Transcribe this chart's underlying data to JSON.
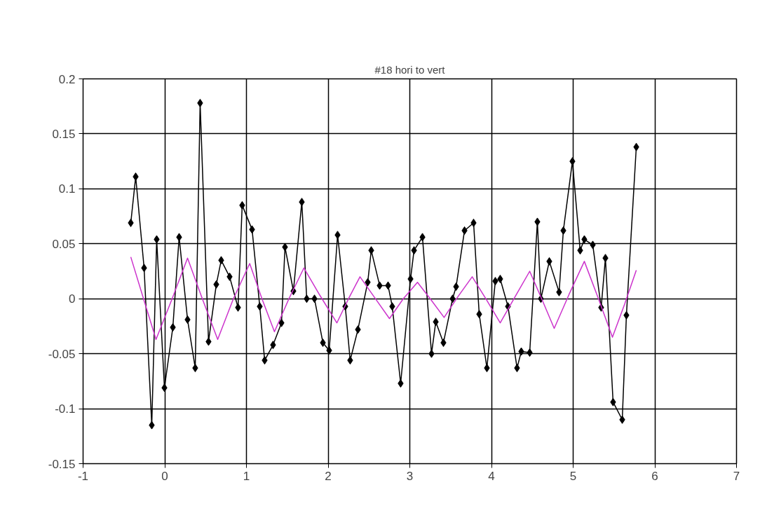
{
  "chart_data": {
    "type": "line",
    "title": "#18 hori to vert",
    "xlim": [
      -1,
      7
    ],
    "xticks": [
      -1,
      0,
      1,
      2,
      3,
      4,
      5,
      6,
      7
    ],
    "ylim": [
      -0.15,
      0.2
    ],
    "yticks": [
      -0.15,
      -0.1,
      -0.05,
      0,
      0.05,
      0.1,
      0.15,
      0.2
    ],
    "grid": true,
    "series": [
      {
        "color": "#000000",
        "marker": "diamond",
        "x": [
          -0.416,
          -0.356,
          -0.253,
          -0.159,
          -0.099,
          -0.004,
          0.099,
          0.176,
          0.279,
          0.373,
          0.433,
          0.536,
          0.631,
          0.691,
          0.794,
          0.897,
          0.948,
          1.069,
          1.163,
          1.223,
          1.326,
          1.429,
          1.472,
          1.575,
          1.678,
          1.738,
          1.833,
          1.936,
          2.013,
          2.116,
          2.21,
          2.27,
          2.365,
          2.485,
          2.528,
          2.631,
          2.734,
          2.785,
          2.888,
          3.009,
          3.052,
          3.155,
          3.266,
          3.318,
          3.412,
          3.524,
          3.567,
          3.67,
          3.781,
          3.85,
          3.944,
          4.047,
          4.107,
          4.202,
          4.313,
          4.365,
          4.468,
          4.562,
          4.605,
          4.708,
          4.828,
          4.88,
          4.991,
          5.086,
          5.137,
          5.24,
          5.343,
          5.395,
          5.489,
          5.601,
          5.652,
          5.773
        ],
        "values": [
          0.069,
          0.111,
          0.028,
          -0.115,
          0.054,
          -0.081,
          -0.026,
          0.056,
          -0.019,
          -0.063,
          0.178,
          -0.039,
          0.013,
          0.035,
          0.02,
          -0.008,
          0.085,
          0.063,
          -0.007,
          -0.056,
          -0.042,
          -0.022,
          0.047,
          0.007,
          0.088,
          0.0,
          0.0,
          -0.04,
          -0.047,
          0.058,
          -0.007,
          -0.056,
          -0.028,
          0.015,
          0.044,
          0.012,
          0.012,
          -0.007,
          -0.077,
          0.018,
          0.044,
          0.056,
          -0.05,
          -0.021,
          -0.04,
          0.0,
          0.011,
          0.062,
          0.069,
          -0.014,
          -0.063,
          0.016,
          0.018,
          -0.007,
          -0.063,
          -0.048,
          -0.049,
          0.07,
          0.0,
          0.034,
          0.006,
          0.062,
          0.125,
          0.044,
          0.054,
          0.049,
          -0.008,
          0.037,
          -0.094,
          -0.11,
          -0.015,
          0.138
        ]
      },
      {
        "color": "#cc33cc",
        "marker": "none",
        "x": [
          -0.416,
          -0.26,
          -0.107,
          0.09,
          0.279,
          0.46,
          0.648,
          0.84,
          1.04,
          1.19,
          1.343,
          1.52,
          1.704,
          1.9,
          2.107,
          2.25,
          2.39,
          2.57,
          2.751,
          2.92,
          3.094,
          3.26,
          3.42,
          3.59,
          3.764,
          3.94,
          4.107,
          4.29,
          4.468,
          4.62,
          4.768,
          4.95,
          5.137,
          5.31,
          5.481,
          5.63,
          5.773
        ],
        "values": [
          0.038,
          0.0,
          -0.037,
          0.0,
          0.037,
          0.0,
          -0.037,
          0.0,
          0.032,
          0.0,
          -0.03,
          0.0,
          0.028,
          0.003,
          -0.022,
          0.0,
          0.02,
          0.001,
          -0.018,
          0.0,
          0.015,
          -0.001,
          -0.017,
          0.002,
          0.02,
          -0.001,
          -0.022,
          0.002,
          0.025,
          -0.001,
          -0.027,
          0.004,
          0.034,
          0.0,
          -0.035,
          -0.005,
          0.026
        ]
      }
    ]
  }
}
